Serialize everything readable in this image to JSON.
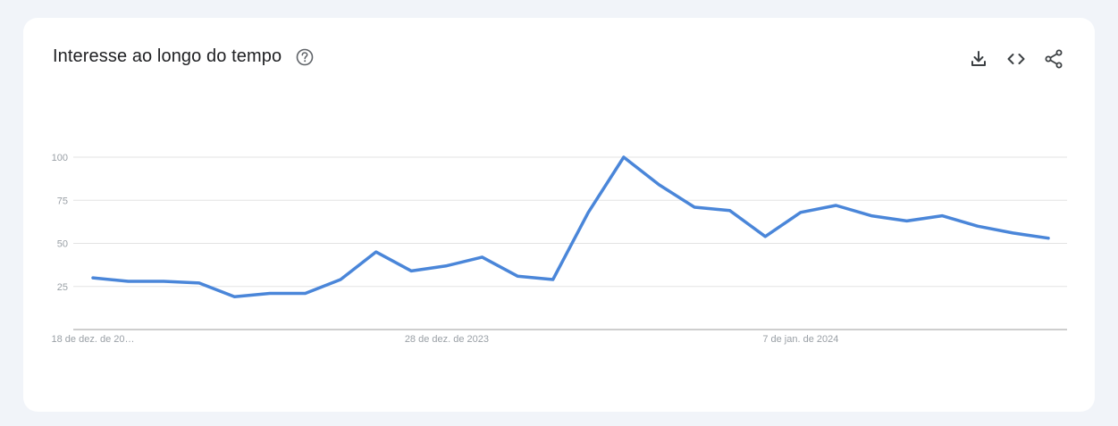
{
  "header": {
    "title": "Interesse ao longo do tempo"
  },
  "icons": {
    "help": "help-circle-icon",
    "download": "download-icon",
    "embed": "code-embed-icon",
    "share": "share-icon"
  },
  "colors": {
    "line": "#4a86d9",
    "grid": "#e3e3e3",
    "axis": "#9e9e9e",
    "tick_text": "#9aa0a6",
    "title": "#202124"
  },
  "chart_data": {
    "type": "line",
    "title": "Interesse ao longo do tempo",
    "ylim": [
      0,
      100
    ],
    "y_ticks": [
      25,
      50,
      75,
      100
    ],
    "x_tick_labels": [
      {
        "label": "18 de dez. de 20…",
        "index": 0
      },
      {
        "label": "28 de dez. de 2023",
        "index": 10
      },
      {
        "label": "7 de jan. de 2024",
        "index": 20
      }
    ],
    "grid": true,
    "series": [
      {
        "values": [
          30,
          28,
          28,
          27,
          19,
          21,
          21,
          29,
          45,
          34,
          37,
          42,
          31,
          29,
          68,
          100,
          84,
          71,
          69,
          54,
          68,
          72,
          66,
          63,
          66,
          60,
          56,
          53
        ]
      }
    ]
  }
}
